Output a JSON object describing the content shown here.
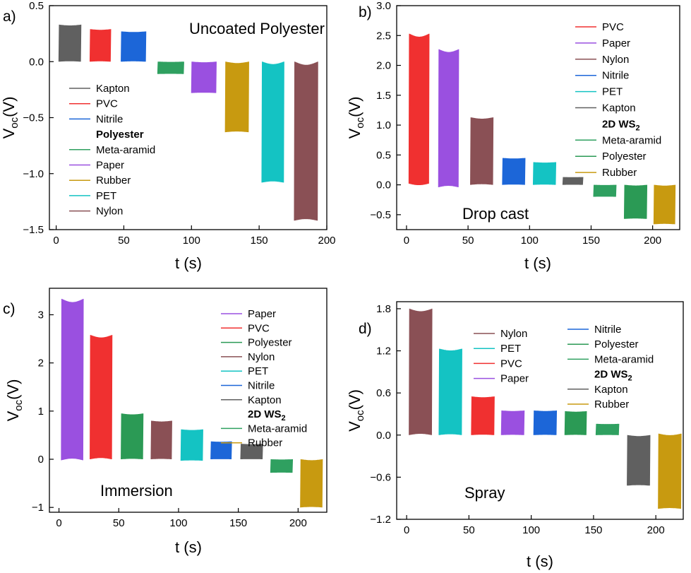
{
  "colors": {
    "Kapton": "#606060",
    "PVC": "#f03030",
    "Nitrile": "#1c66d8",
    "Meta-aramid": "#2fa060",
    "Paper": "#9a50e0",
    "Rubber": "#c89a10",
    "PET": "#14c3c3",
    "Nylon": "#8a5055",
    "Polyester": "#2b9a55",
    "Polyester_d": "#b0a020",
    "Rubber_b": "#7a7a00",
    "Rubber_c": "#8a8a00"
  },
  "chart_data": [
    {
      "type": "line",
      "panel": "a)",
      "annotation": "Uncoated Polyester",
      "xlabel": "t (s)",
      "ylabel": "Voc(V)",
      "xlim": [
        -5,
        200
      ],
      "ylim": [
        -1.5,
        0.5
      ],
      "xticks": [
        0,
        50,
        100,
        150,
        200
      ],
      "yticks": [
        -1.5,
        -1.0,
        -0.5,
        0.0,
        0.5
      ],
      "ytick_labels": [
        "−1.5",
        "−1.0",
        "−0.5",
        "0.0",
        "0.5"
      ],
      "legend_items": [
        "Kapton",
        "PVC",
        "Nitrile",
        "Polyester",
        "Meta-aramid",
        "Paper",
        "Rubber",
        "PET",
        "Nylon"
      ],
      "legend_bold": "Polyester",
      "series": [
        {
          "name": "Kapton",
          "x_range": [
            2,
            18
          ],
          "v_low": 0.0,
          "v_high": 0.33
        },
        {
          "name": "PVC",
          "x_range": [
            25,
            40
          ],
          "v_low": 0.0,
          "v_high": 0.29
        },
        {
          "name": "Nitrile",
          "x_range": [
            48,
            66
          ],
          "v_low": 0.0,
          "v_high": 0.27
        },
        {
          "name": "Meta-aramid",
          "x_range": [
            75,
            94
          ],
          "v_low": -0.11,
          "v_high": 0.0
        },
        {
          "name": "Paper",
          "x_range": [
            100,
            118
          ],
          "v_low": -0.28,
          "v_high": 0.0
        },
        {
          "name": "Rubber",
          "x_range": [
            125,
            142
          ],
          "v_low": -0.63,
          "v_high": 0.0
        },
        {
          "name": "PET",
          "x_range": [
            152,
            168
          ],
          "v_low": -1.08,
          "v_high": 0.0
        },
        {
          "name": "Nylon",
          "x_range": [
            176,
            193
          ],
          "v_low": -1.42,
          "v_high": 0.0
        }
      ]
    },
    {
      "type": "line",
      "panel": "b)",
      "annotation": "Drop cast",
      "xlabel": "t (s)",
      "ylabel": "Voc(V)",
      "xlim": [
        -8,
        222
      ],
      "ylim": [
        -0.75,
        3.0
      ],
      "xticks": [
        0,
        50,
        100,
        150,
        200
      ],
      "yticks": [
        -0.5,
        0.0,
        0.5,
        1.0,
        1.5,
        2.0,
        2.5,
        3.0
      ],
      "ytick_labels": [
        "−0.5",
        "0.0",
        "0.5",
        "1.0",
        "1.5",
        "2.0",
        "2.5",
        "3.0"
      ],
      "legend_items": [
        "PVC",
        "Paper",
        "Nylon",
        "Nitrile",
        "PET",
        "Kapton",
        "2D WS2",
        "Meta-aramid",
        "Polyester",
        "Rubber"
      ],
      "legend_bold": "2D WS2",
      "series": [
        {
          "name": "PVC",
          "x_range": [
            2,
            18
          ],
          "v_low": 0.02,
          "v_high": 2.53
        },
        {
          "name": "Paper",
          "x_range": [
            26,
            42
          ],
          "v_low": -0.04,
          "v_high": 2.27
        },
        {
          "name": "Nylon",
          "x_range": [
            52,
            70
          ],
          "v_low": 0.0,
          "v_high": 1.13
        },
        {
          "name": "Nitrile",
          "x_range": [
            78,
            96
          ],
          "v_low": 0.0,
          "v_high": 0.45
        },
        {
          "name": "PET",
          "x_range": [
            103,
            121
          ],
          "v_low": 0.0,
          "v_high": 0.38
        },
        {
          "name": "Kapton",
          "x_range": [
            127,
            143
          ],
          "v_low": 0.0,
          "v_high": 0.13
        },
        {
          "name": "Meta-aramid",
          "x_range": [
            152,
            170
          ],
          "v_low": -0.2,
          "v_high": 0.0
        },
        {
          "name": "Polyester",
          "x_range": [
            177,
            195
          ],
          "v_low": -0.57,
          "v_high": 0.0
        },
        {
          "name": "Rubber",
          "x_range": [
            201,
            218
          ],
          "v_low": -0.66,
          "v_high": 0.0
        }
      ]
    },
    {
      "type": "line",
      "panel": "c)",
      "annotation": "Immersion",
      "xlabel": "t (s)",
      "ylabel": "Voc(V)",
      "xlim": [
        -8,
        224
      ],
      "ylim": [
        -1.1,
        3.55
      ],
      "xticks": [
        0,
        50,
        100,
        150,
        200
      ],
      "yticks": [
        -1,
        0,
        1,
        2,
        3
      ],
      "ytick_labels": [
        "−1",
        "0",
        "1",
        "2",
        "3"
      ],
      "legend_items": [
        "Paper",
        "PVC",
        "Polyester",
        "Nylon",
        "PET",
        "Nitrile",
        "Kapton",
        "2D WS2",
        "Meta-aramid",
        "Rubber"
      ],
      "legend_bold": "2D WS2",
      "series": [
        {
          "name": "Paper",
          "x_range": [
            2,
            20
          ],
          "v_low": -0.02,
          "v_high": 3.33
        },
        {
          "name": "PVC",
          "x_range": [
            26,
            44
          ],
          "v_low": 0.0,
          "v_high": 2.58
        },
        {
          "name": "Polyester",
          "x_range": [
            52,
            70
          ],
          "v_low": 0.0,
          "v_high": 0.95
        },
        {
          "name": "Nylon",
          "x_range": [
            77,
            94
          ],
          "v_low": 0.0,
          "v_high": 0.8
        },
        {
          "name": "PET",
          "x_range": [
            102,
            120
          ],
          "v_low": -0.03,
          "v_high": 0.62
        },
        {
          "name": "Nitrile",
          "x_range": [
            127,
            144
          ],
          "v_low": 0.0,
          "v_high": 0.37
        },
        {
          "name": "Kapton",
          "x_range": [
            152,
            170
          ],
          "v_low": 0.0,
          "v_high": 0.32
        },
        {
          "name": "Meta-aramid",
          "x_range": [
            177,
            195
          ],
          "v_low": -0.28,
          "v_high": 0.0
        },
        {
          "name": "Rubber",
          "x_range": [
            202,
            220
          ],
          "v_low": -1.0,
          "v_high": 0.0
        }
      ]
    },
    {
      "type": "line",
      "panel": "d)",
      "annotation": "Spray",
      "xlabel": "t (s)",
      "ylabel": "Voc(V)",
      "xlim": [
        -8,
        222
      ],
      "ylim": [
        -1.2,
        1.9
      ],
      "xticks": [
        0,
        50,
        100,
        150,
        200
      ],
      "yticks": [
        -1.2,
        -0.6,
        0.0,
        0.6,
        1.2,
        1.8
      ],
      "ytick_labels": [
        "−1.2",
        "−0.6",
        "0.0",
        "0.6",
        "1.2",
        "1.8"
      ],
      "legend_items": [
        "Nylon",
        "PET",
        "PVC",
        "Paper",
        "Nitrile",
        "Polyester",
        "Meta-aramid",
        "2D WS2",
        "Kapton",
        "Rubber"
      ],
      "legend_bold": "2D WS2",
      "series": [
        {
          "name": "Nylon",
          "x_range": [
            2,
            20
          ],
          "v_low": 0.0,
          "v_high": 1.8
        },
        {
          "name": "PET",
          "x_range": [
            26,
            44
          ],
          "v_low": 0.0,
          "v_high": 1.23
        },
        {
          "name": "PVC",
          "x_range": [
            52,
            70
          ],
          "v_low": 0.0,
          "v_high": 0.55
        },
        {
          "name": "Paper",
          "x_range": [
            76,
            94
          ],
          "v_low": 0.0,
          "v_high": 0.35
        },
        {
          "name": "Nitrile",
          "x_range": [
            102,
            120
          ],
          "v_low": 0.0,
          "v_high": 0.35
        },
        {
          "name": "Polyester",
          "x_range": [
            127,
            144
          ],
          "v_low": 0.0,
          "v_high": 0.34
        },
        {
          "name": "Meta-aramid",
          "x_range": [
            152,
            170
          ],
          "v_low": 0.0,
          "v_high": 0.16
        },
        {
          "name": "Kapton",
          "x_range": [
            177,
            195
          ],
          "v_low": -0.72,
          "v_high": 0.0
        },
        {
          "name": "Rubber",
          "x_range": [
            202,
            220
          ],
          "v_low": -1.05,
          "v_high": 0.02
        }
      ]
    }
  ]
}
